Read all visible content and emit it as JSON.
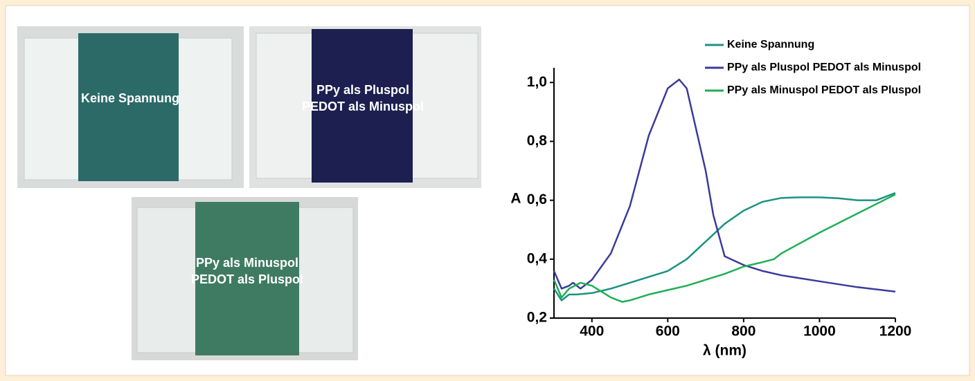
{
  "photos": [
    {
      "lines": [
        "Keine Spannung"
      ]
    },
    {
      "lines": [
        "PPy als Pluspol",
        "PEDOT als Minuspol"
      ]
    },
    {
      "lines": [
        "PPy als Minuspol",
        "PEDOT als Pluspol"
      ]
    }
  ],
  "chart_data": {
    "type": "line",
    "y_label": "A",
    "x_label": "λ (nm)",
    "xlim": [
      300,
      1200
    ],
    "ylim": [
      0.2,
      1.05
    ],
    "xticks": [
      400,
      600,
      800,
      1000,
      1200
    ],
    "yticks": [
      {
        "value": 0.2,
        "label": "0,2"
      },
      {
        "value": 0.4,
        "label": "0,4"
      },
      {
        "value": 0.6,
        "label": "0,6"
      },
      {
        "value": 0.8,
        "label": "0,8"
      },
      {
        "value": 1.0,
        "label": "1,0"
      }
    ],
    "series": [
      {
        "name": "Keine Spannung",
        "color": "#1b9181",
        "x": [
          300,
          320,
          340,
          360,
          400,
          450,
          500,
          550,
          600,
          650,
          700,
          750,
          800,
          850,
          900,
          950,
          1000,
          1050,
          1100,
          1150,
          1200
        ],
        "values": [
          0.3,
          0.26,
          0.28,
          0.28,
          0.285,
          0.3,
          0.32,
          0.34,
          0.36,
          0.4,
          0.46,
          0.52,
          0.565,
          0.595,
          0.608,
          0.61,
          0.61,
          0.607,
          0.6,
          0.6,
          0.625
        ]
      },
      {
        "name": "PPy als Pluspol PEDOT als Minuspol",
        "color": "#3b3a9c",
        "x": [
          300,
          320,
          340,
          350,
          370,
          400,
          450,
          500,
          550,
          600,
          630,
          650,
          700,
          720,
          750,
          800,
          850,
          900,
          1000,
          1100,
          1200
        ],
        "values": [
          0.36,
          0.3,
          0.31,
          0.32,
          0.3,
          0.33,
          0.42,
          0.58,
          0.82,
          0.98,
          1.01,
          0.98,
          0.7,
          0.55,
          0.41,
          0.38,
          0.36,
          0.345,
          0.325,
          0.305,
          0.29
        ]
      },
      {
        "name": "PPy als Minuspol PEDOT als Pluspol",
        "color": "#1fae55",
        "x": [
          300,
          320,
          340,
          370,
          400,
          450,
          480,
          500,
          550,
          600,
          650,
          700,
          750,
          800,
          850,
          880,
          900,
          1000,
          1100,
          1200
        ],
        "values": [
          0.33,
          0.27,
          0.3,
          0.32,
          0.31,
          0.27,
          0.255,
          0.26,
          0.28,
          0.295,
          0.31,
          0.33,
          0.35,
          0.375,
          0.39,
          0.4,
          0.42,
          0.49,
          0.555,
          0.62
        ]
      }
    ]
  }
}
